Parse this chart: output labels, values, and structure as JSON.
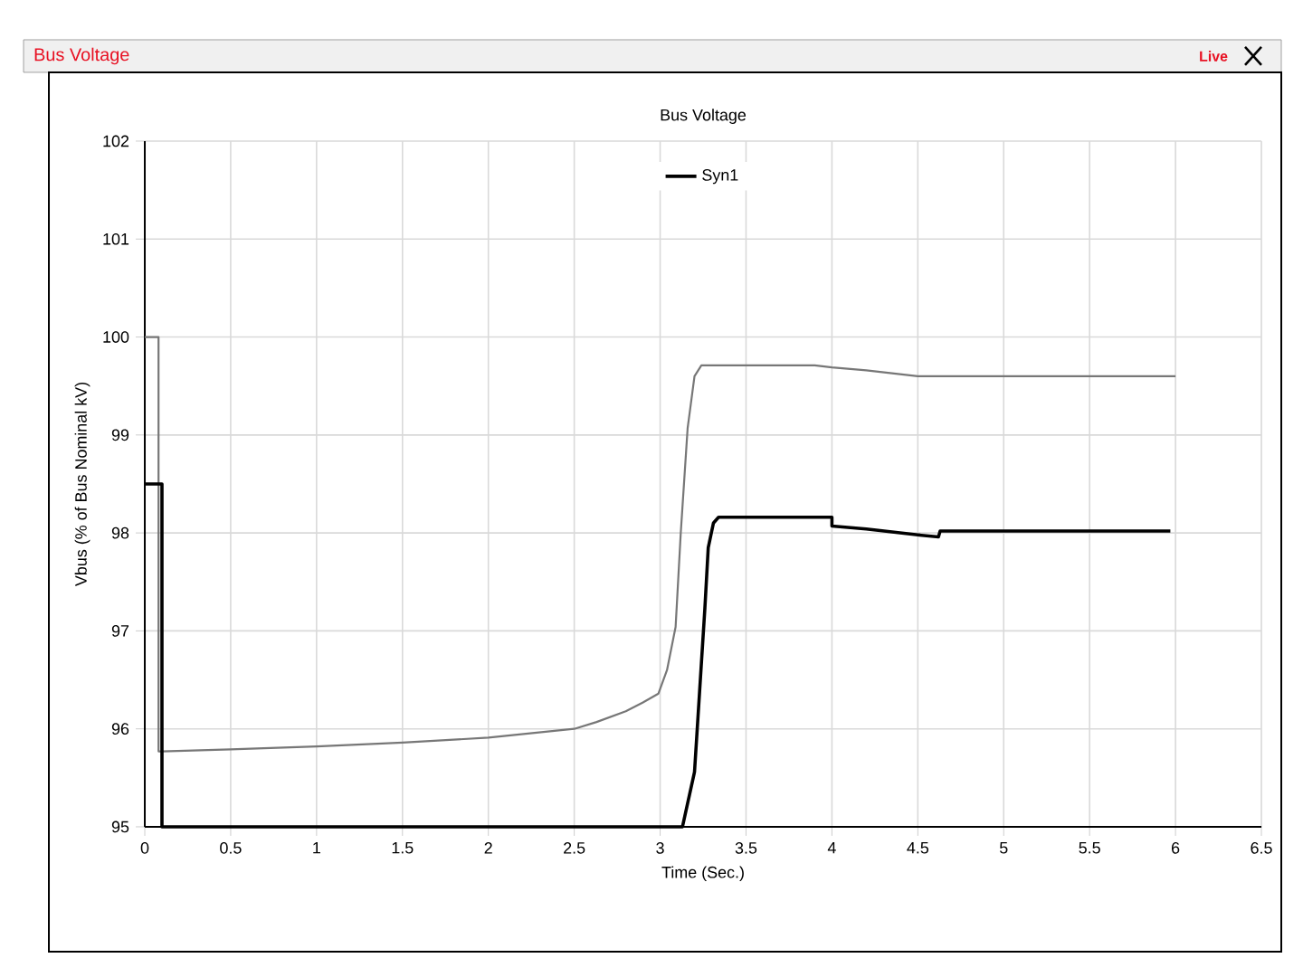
{
  "chart_data": {
    "type": "line",
    "title": "Bus Voltage",
    "xlabel": "Time (Sec.)",
    "ylabel": "Vbus (% of Bus Nominal kV)",
    "annotations": [
      "Bus Voltage",
      "Live"
    ],
    "series": [
      {
        "color": "#777777",
        "x": [
          0,
          0.08,
          0.08,
          0.1,
          0.5,
          1,
          1.5,
          2,
          2.5,
          2.63,
          2.8,
          2.9,
          2.99,
          3.04,
          3.09,
          3.12,
          3.16,
          3.2,
          3.24,
          3.9,
          4.0,
          4.2,
          4.5,
          6.0
        ],
        "values": [
          100,
          100,
          95.77,
          95.77,
          95.79,
          95.82,
          95.86,
          95.91,
          96.0,
          96.07,
          96.18,
          96.27,
          96.36,
          96.6,
          97.04,
          98.0,
          99.07,
          99.6,
          99.71,
          99.71,
          99.69,
          99.66,
          99.6,
          99.6
        ]
      },
      {
        "name": "Syn1",
        "color": "#000000",
        "x": [
          0,
          0.1,
          0.1,
          3.13,
          3.2,
          3.26,
          3.28,
          3.31,
          3.34,
          4.0,
          4.0,
          4.2,
          4.5,
          4.62,
          4.63,
          5.97
        ],
        "values": [
          98.5,
          98.5,
          95,
          95,
          95.56,
          97.22,
          97.85,
          98.1,
          98.16,
          98.16,
          98.07,
          98.04,
          97.98,
          97.96,
          98.02,
          98.02
        ]
      }
    ],
    "xlim": [
      0,
      6.5
    ],
    "ylim": [
      95,
      102
    ],
    "xticks": [
      0,
      0.5,
      1,
      1.5,
      2,
      2.5,
      3,
      3.5,
      4,
      4.5,
      5,
      5.5,
      6,
      6.5
    ],
    "yticks": [
      95,
      96,
      97,
      98,
      99,
      100,
      101,
      102
    ],
    "grid": true,
    "legend": "top",
    "marker": "none",
    "line_style": "solid"
  }
}
